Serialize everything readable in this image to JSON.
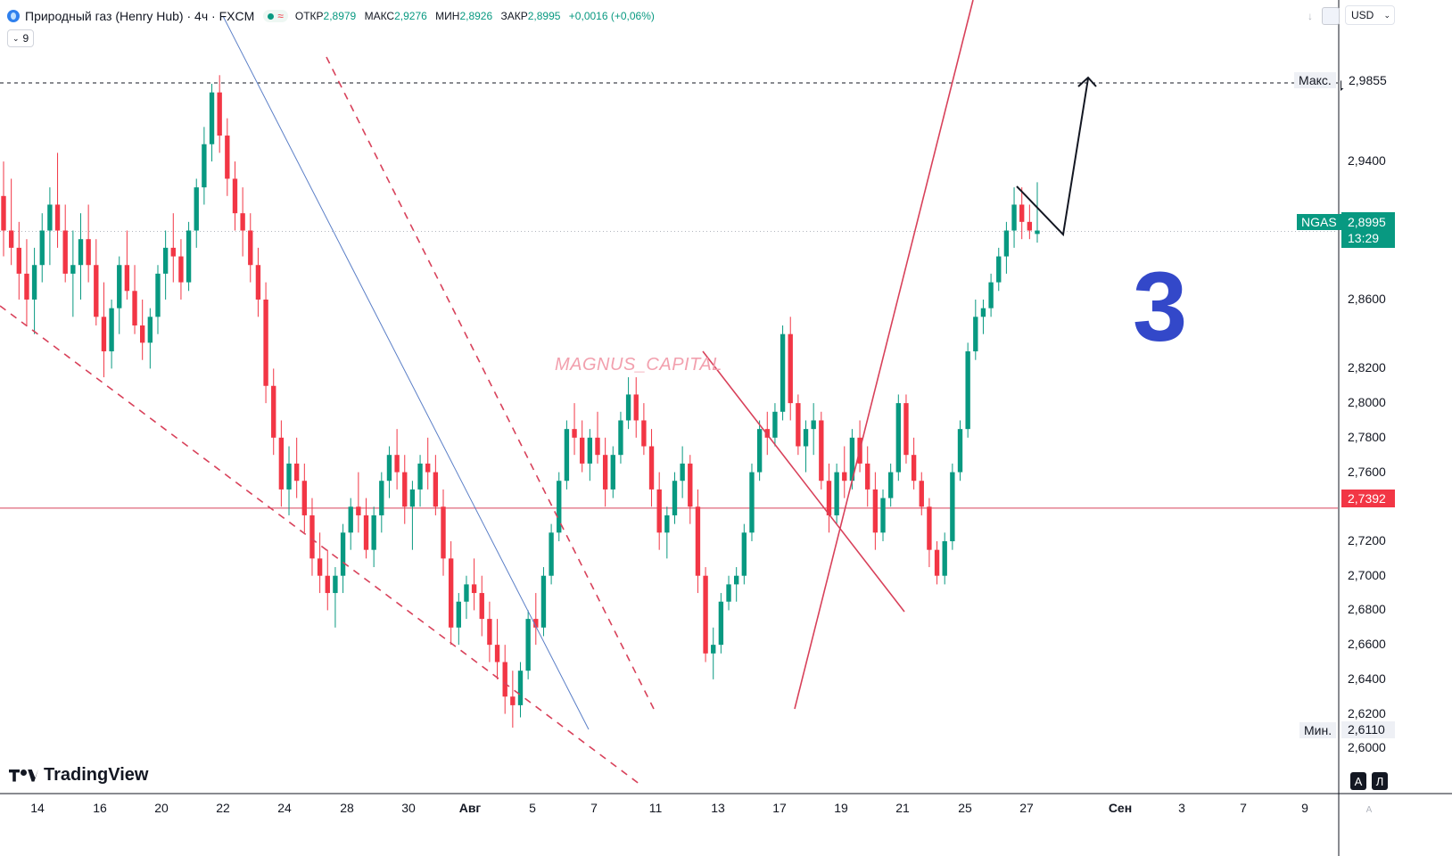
{
  "header": {
    "instrument": "Природный газ (Henry Hub)",
    "separator1": "·",
    "timeframe": "4ч",
    "separator2": "·",
    "exchange": "FXCM",
    "ohlc": [
      {
        "label": "ОТКР",
        "value": "2,8979"
      },
      {
        "label": "МАКС",
        "value": "2,9276"
      },
      {
        "label": "МИН",
        "value": "2,8926"
      },
      {
        "label": "ЗАКР",
        "value": "2,8995"
      }
    ],
    "change": "+0,0016 (+0,06%)",
    "indicators_badge": "9",
    "currency": "USD"
  },
  "branding": {
    "watermark": "MAGNUS_CAPITAL",
    "big_number": "3",
    "logo_text": "TradingView"
  },
  "price_tags": {
    "max_label": "Макс.",
    "max_value": "2,9855",
    "min_label": "Мин.",
    "min_value": "2,6110",
    "symbol": "NGAS",
    "current_price": "2,8995",
    "countdown": "13:29",
    "level_price": "2,7392"
  },
  "bottom_buttons": {
    "auto": "A",
    "log": "Л"
  },
  "colors": {
    "up": "#089981",
    "down": "#f23645",
    "brand_line": "#d8415a",
    "trend_blue": "#5b7fc7",
    "bignum": "#3348c9"
  },
  "chart_data": {
    "type": "candlestick",
    "timeframe": "4h",
    "x_tick_labels": [
      "14",
      "16",
      "20",
      "22",
      "24",
      "28",
      "30",
      "Авг",
      "5",
      "7",
      "11",
      "13",
      "17",
      "19",
      "21",
      "25",
      "27",
      "Сен",
      "3",
      "7",
      "9"
    ],
    "y_tick_labels": [
      "2,6000",
      "2,6200",
      "2,6400",
      "2,6600",
      "2,6800",
      "2,7000",
      "2,7200",
      "2,7600",
      "2,7800",
      "2,8000",
      "2,8200",
      "2,8600",
      "2,9400"
    ],
    "ylim": [
      2.589,
      3.0342
    ],
    "horizontal_levels": [
      {
        "value": 2.9855,
        "style": "dashed",
        "color": "#131722"
      },
      {
        "value": 2.7392,
        "style": "solid",
        "color": "#d8415a"
      },
      {
        "value": 2.8995,
        "style": "dotted",
        "color": "#b2b5be"
      }
    ],
    "candles_ohlc": [
      [
        2.92,
        2.94,
        2.885,
        2.9
      ],
      [
        2.9,
        2.93,
        2.88,
        2.89
      ],
      [
        2.89,
        2.905,
        2.86,
        2.875
      ],
      [
        2.875,
        2.895,
        2.845,
        2.86
      ],
      [
        2.86,
        2.89,
        2.84,
        2.88
      ],
      [
        2.88,
        2.91,
        2.87,
        2.9
      ],
      [
        2.9,
        2.925,
        2.88,
        2.915
      ],
      [
        2.915,
        2.945,
        2.89,
        2.9
      ],
      [
        2.9,
        2.915,
        2.87,
        2.875
      ],
      [
        2.875,
        2.9,
        2.85,
        2.88
      ],
      [
        2.88,
        2.91,
        2.86,
        2.895
      ],
      [
        2.895,
        2.915,
        2.87,
        2.88
      ],
      [
        2.88,
        2.895,
        2.845,
        2.85
      ],
      [
        2.85,
        2.87,
        2.815,
        2.83
      ],
      [
        2.83,
        2.86,
        2.82,
        2.855
      ],
      [
        2.855,
        2.885,
        2.84,
        2.88
      ],
      [
        2.88,
        2.9,
        2.86,
        2.865
      ],
      [
        2.865,
        2.88,
        2.84,
        2.845
      ],
      [
        2.845,
        2.86,
        2.825,
        2.835
      ],
      [
        2.835,
        2.855,
        2.82,
        2.85
      ],
      [
        2.85,
        2.88,
        2.84,
        2.875
      ],
      [
        2.875,
        2.9,
        2.86,
        2.89
      ],
      [
        2.89,
        2.91,
        2.87,
        2.885
      ],
      [
        2.885,
        2.895,
        2.86,
        2.87
      ],
      [
        2.87,
        2.905,
        2.865,
        2.9
      ],
      [
        2.9,
        2.93,
        2.89,
        2.925
      ],
      [
        2.925,
        2.96,
        2.915,
        2.95
      ],
      [
        2.95,
        2.985,
        2.94,
        2.98
      ],
      [
        2.98,
        2.99,
        2.945,
        2.955
      ],
      [
        2.955,
        2.965,
        2.92,
        2.93
      ],
      [
        2.93,
        2.94,
        2.9,
        2.91
      ],
      [
        2.91,
        2.925,
        2.885,
        2.9
      ],
      [
        2.9,
        2.91,
        2.87,
        2.88
      ],
      [
        2.88,
        2.89,
        2.85,
        2.86
      ],
      [
        2.86,
        2.87,
        2.8,
        2.81
      ],
      [
        2.81,
        2.82,
        2.77,
        2.78
      ],
      [
        2.78,
        2.79,
        2.74,
        2.75
      ],
      [
        2.75,
        2.775,
        2.735,
        2.765
      ],
      [
        2.765,
        2.78,
        2.745,
        2.755
      ],
      [
        2.755,
        2.765,
        2.725,
        2.735
      ],
      [
        2.735,
        2.745,
        2.7,
        2.71
      ],
      [
        2.71,
        2.725,
        2.69,
        2.7
      ],
      [
        2.7,
        2.715,
        2.68,
        2.69
      ],
      [
        2.69,
        2.705,
        2.67,
        2.7
      ],
      [
        2.7,
        2.73,
        2.69,
        2.725
      ],
      [
        2.725,
        2.745,
        2.715,
        2.74
      ],
      [
        2.74,
        2.76,
        2.725,
        2.735
      ],
      [
        2.735,
        2.745,
        2.71,
        2.715
      ],
      [
        2.715,
        2.74,
        2.705,
        2.735
      ],
      [
        2.735,
        2.76,
        2.725,
        2.755
      ],
      [
        2.755,
        2.775,
        2.745,
        2.77
      ],
      [
        2.77,
        2.785,
        2.75,
        2.76
      ],
      [
        2.76,
        2.77,
        2.73,
        2.74
      ],
      [
        2.74,
        2.755,
        2.715,
        2.75
      ],
      [
        2.75,
        2.77,
        2.74,
        2.765
      ],
      [
        2.765,
        2.78,
        2.75,
        2.76
      ],
      [
        2.76,
        2.77,
        2.735,
        2.74
      ],
      [
        2.74,
        2.75,
        2.7,
        2.71
      ],
      [
        2.71,
        2.72,
        2.66,
        2.67
      ],
      [
        2.67,
        2.69,
        2.66,
        2.685
      ],
      [
        2.685,
        2.7,
        2.675,
        2.695
      ],
      [
        2.695,
        2.71,
        2.68,
        2.69
      ],
      [
        2.69,
        2.7,
        2.665,
        2.675
      ],
      [
        2.675,
        2.685,
        2.65,
        2.66
      ],
      [
        2.66,
        2.675,
        2.64,
        2.65
      ],
      [
        2.65,
        2.66,
        2.62,
        2.63
      ],
      [
        2.63,
        2.645,
        2.612,
        2.625
      ],
      [
        2.625,
        2.65,
        2.618,
        2.645
      ],
      [
        2.645,
        2.68,
        2.64,
        2.675
      ],
      [
        2.675,
        2.69,
        2.66,
        2.67
      ],
      [
        2.67,
        2.705,
        2.665,
        2.7
      ],
      [
        2.7,
        2.73,
        2.695,
        2.725
      ],
      [
        2.725,
        2.76,
        2.72,
        2.755
      ],
      [
        2.755,
        2.79,
        2.75,
        2.785
      ],
      [
        2.785,
        2.8,
        2.77,
        2.78
      ],
      [
        2.78,
        2.79,
        2.76,
        2.765
      ],
      [
        2.765,
        2.785,
        2.755,
        2.78
      ],
      [
        2.78,
        2.795,
        2.765,
        2.77
      ],
      [
        2.77,
        2.78,
        2.74,
        2.75
      ],
      [
        2.75,
        2.775,
        2.745,
        2.77
      ],
      [
        2.77,
        2.795,
        2.765,
        2.79
      ],
      [
        2.79,
        2.815,
        2.785,
        2.805
      ],
      [
        2.805,
        2.815,
        2.78,
        2.79
      ],
      [
        2.79,
        2.8,
        2.77,
        2.775
      ],
      [
        2.775,
        2.785,
        2.74,
        2.75
      ],
      [
        2.75,
        2.76,
        2.715,
        2.725
      ],
      [
        2.725,
        2.74,
        2.71,
        2.735
      ],
      [
        2.735,
        2.76,
        2.73,
        2.755
      ],
      [
        2.755,
        2.775,
        2.745,
        2.765
      ],
      [
        2.765,
        2.77,
        2.73,
        2.74
      ],
      [
        2.74,
        2.75,
        2.69,
        2.7
      ],
      [
        2.7,
        2.705,
        2.65,
        2.655
      ],
      [
        2.655,
        2.67,
        2.64,
        2.66
      ],
      [
        2.66,
        2.69,
        2.655,
        2.685
      ],
      [
        2.685,
        2.7,
        2.68,
        2.695
      ],
      [
        2.695,
        2.705,
        2.685,
        2.7
      ],
      [
        2.7,
        2.73,
        2.695,
        2.725
      ],
      [
        2.725,
        2.765,
        2.72,
        2.76
      ],
      [
        2.76,
        2.79,
        2.755,
        2.785
      ],
      [
        2.785,
        2.795,
        2.77,
        2.78
      ],
      [
        2.78,
        2.8,
        2.775,
        2.795
      ],
      [
        2.795,
        2.845,
        2.79,
        2.84
      ],
      [
        2.84,
        2.85,
        2.79,
        2.8
      ],
      [
        2.8,
        2.805,
        2.77,
        2.775
      ],
      [
        2.775,
        2.79,
        2.76,
        2.785
      ],
      [
        2.785,
        2.8,
        2.77,
        2.79
      ],
      [
        2.79,
        2.795,
        2.75,
        2.755
      ],
      [
        2.755,
        2.765,
        2.725,
        2.735
      ],
      [
        2.735,
        2.765,
        2.73,
        2.76
      ],
      [
        2.76,
        2.775,
        2.745,
        2.755
      ],
      [
        2.755,
        2.785,
        2.75,
        2.78
      ],
      [
        2.78,
        2.79,
        2.76,
        2.765
      ],
      [
        2.765,
        2.775,
        2.74,
        2.75
      ],
      [
        2.75,
        2.76,
        2.715,
        2.725
      ],
      [
        2.725,
        2.75,
        2.72,
        2.745
      ],
      [
        2.745,
        2.765,
        2.74,
        2.76
      ],
      [
        2.76,
        2.805,
        2.755,
        2.8
      ],
      [
        2.8,
        2.805,
        2.765,
        2.77
      ],
      [
        2.77,
        2.78,
        2.75,
        2.755
      ],
      [
        2.755,
        2.76,
        2.735,
        2.74
      ],
      [
        2.74,
        2.745,
        2.705,
        2.715
      ],
      [
        2.715,
        2.72,
        2.695,
        2.7
      ],
      [
        2.7,
        2.725,
        2.695,
        2.72
      ],
      [
        2.72,
        2.765,
        2.715,
        2.76
      ],
      [
        2.76,
        2.79,
        2.755,
        2.785
      ],
      [
        2.785,
        2.835,
        2.78,
        2.83
      ],
      [
        2.83,
        2.86,
        2.825,
        2.85
      ],
      [
        2.85,
        2.86,
        2.84,
        2.855
      ],
      [
        2.855,
        2.875,
        2.85,
        2.87
      ],
      [
        2.87,
        2.89,
        2.865,
        2.885
      ],
      [
        2.885,
        2.905,
        2.875,
        2.9
      ],
      [
        2.9,
        2.925,
        2.89,
        2.915
      ],
      [
        2.915,
        2.925,
        2.895,
        2.905
      ],
      [
        2.905,
        2.915,
        2.895,
        2.9
      ],
      [
        2.898,
        2.928,
        2.893,
        2.9
      ]
    ],
    "annotations": {
      "numeral": "3",
      "watermark": "MAGNUS_CAPITAL",
      "projection_arrow_target": 2.986
    }
  }
}
